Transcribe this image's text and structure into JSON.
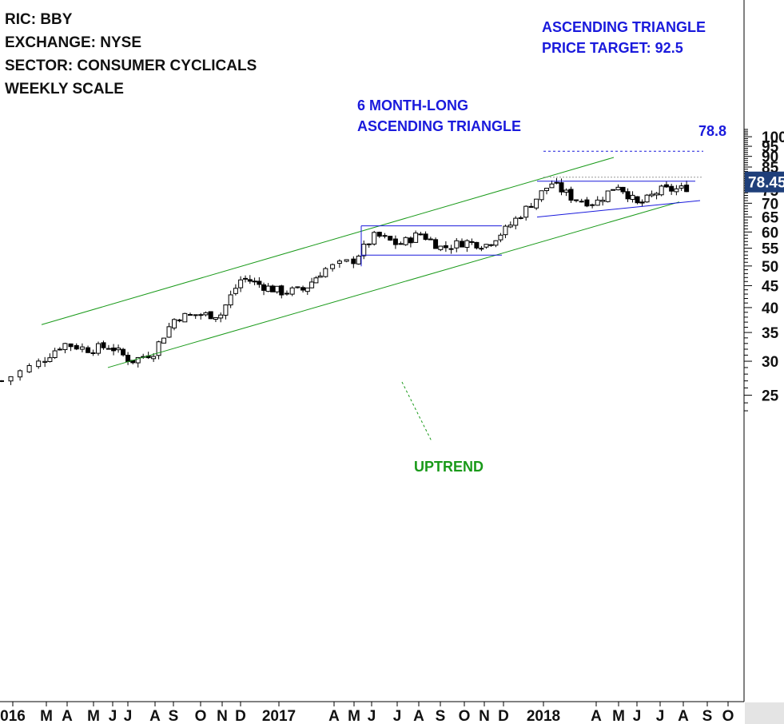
{
  "info": {
    "ric": "RIC: BBY",
    "exchange": "EXCHANGE: NYSE",
    "sector": "SECTOR: CONSUMER CYCLICALS",
    "scale": "WEEKLY SCALE"
  },
  "annotations": {
    "target_title": "ASCENDING TRIANGLE",
    "target_value": "PRICE TARGET: 92.5",
    "pattern_line1": "6 MONTH-LONG",
    "pattern_line2": "ASCENDING TRIANGLE",
    "resistance_label": "78.8",
    "trend_label": "UPTREND"
  },
  "colors": {
    "trend_channel": "#1a9a1a",
    "pattern": "#1a1adc",
    "price_tag_bg": "#1f3f7a",
    "candle": "#000000"
  },
  "chart_data": {
    "type": "candlestick",
    "scale": "log",
    "ylim": [
      22,
      105
    ],
    "yticks": [
      25,
      30,
      35,
      40,
      45,
      50,
      55,
      60,
      65,
      70,
      75,
      80,
      85,
      90,
      95,
      100
    ],
    "last_price": "78.45",
    "x_labels": [
      "016",
      "M",
      "A",
      "M",
      "J",
      "J",
      "A",
      "S",
      "O",
      "N",
      "D",
      "2017",
      "A",
      "M",
      "J",
      "J",
      "A",
      "S",
      "O",
      "N",
      "D",
      "2018",
      "A",
      "M",
      "J",
      "J",
      "A",
      "S",
      "O"
    ],
    "levels": {
      "resistance": 78.8,
      "price_target": 92.5,
      "rectangle_top": 62.0,
      "rectangle_bottom": 53.0
    },
    "close_path": [
      [
        "2016-01",
        27.0
      ],
      [
        "2016-02",
        30.0
      ],
      [
        "2016-03",
        33.0
      ],
      [
        "2016-04",
        32.0
      ],
      [
        "2016-05",
        32.5
      ],
      [
        "2016-06",
        30.0
      ],
      [
        "2016-07",
        31.5
      ],
      [
        "2016-08",
        38.0
      ],
      [
        "2016-09",
        38.5
      ],
      [
        "2016-10",
        38.5
      ],
      [
        "2016-11",
        47.0
      ],
      [
        "2016-12",
        45.0
      ],
      [
        "2017-01",
        43.5
      ],
      [
        "2017-02",
        44.0
      ],
      [
        "2017-03",
        49.0
      ],
      [
        "2017-04",
        51.5
      ],
      [
        "2017-05",
        59.0
      ],
      [
        "2017-06",
        56.0
      ],
      [
        "2017-07",
        59.5
      ],
      [
        "2017-08",
        55.0
      ],
      [
        "2017-09",
        57.0
      ],
      [
        "2017-10",
        56.0
      ],
      [
        "2017-11",
        61.0
      ],
      [
        "2017-12",
        69.0
      ],
      [
        "2018-01",
        78.0
      ],
      [
        "2018-02",
        72.0
      ],
      [
        "2018-03",
        70.0
      ],
      [
        "2018-04",
        77.5
      ],
      [
        "2018-05",
        69.0
      ],
      [
        "2018-06",
        75.0
      ],
      [
        "2018-07",
        75.5
      ],
      [
        "2018-08",
        78.45
      ]
    ]
  }
}
